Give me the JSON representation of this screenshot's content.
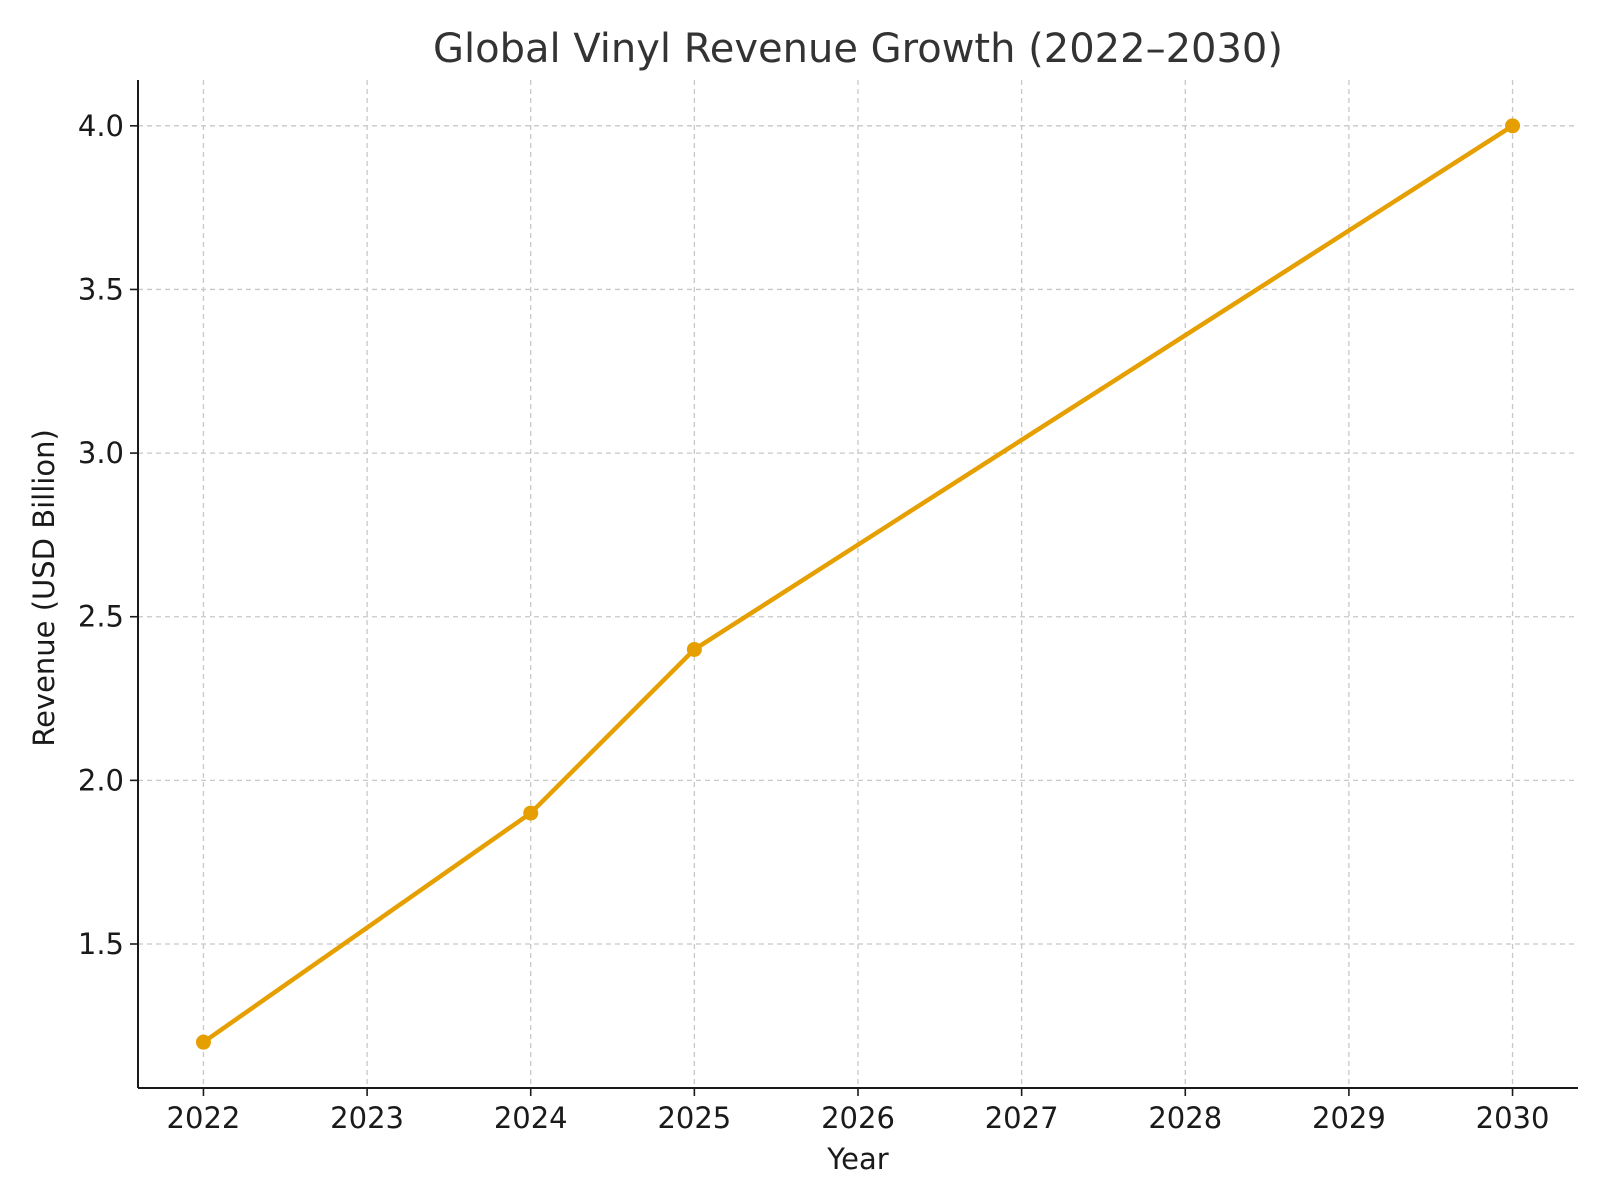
{
  "chart_data": {
    "type": "line",
    "title": "Global Vinyl Revenue Growth (2022–2030)",
    "xlabel": "Year",
    "ylabel": "Revenue (USD Billion)",
    "x": [
      2022,
      2024,
      2025,
      2030
    ],
    "series": [
      {
        "values": [
          1.2,
          1.9,
          2.4,
          4.0
        ],
        "color": "#E69F00"
      }
    ],
    "x_ticks": [
      "2022",
      "2023",
      "2024",
      "2025",
      "2026",
      "2027",
      "2028",
      "2029",
      "2030"
    ],
    "y_ticks": [
      "1.5",
      "2.0",
      "2.5",
      "3.0",
      "3.5",
      "4.0"
    ],
    "xlim": [
      2021.6,
      2030.4
    ],
    "ylim": [
      1.06,
      4.14
    ],
    "grid": true,
    "grid_style": "dashed",
    "legend": "none"
  }
}
